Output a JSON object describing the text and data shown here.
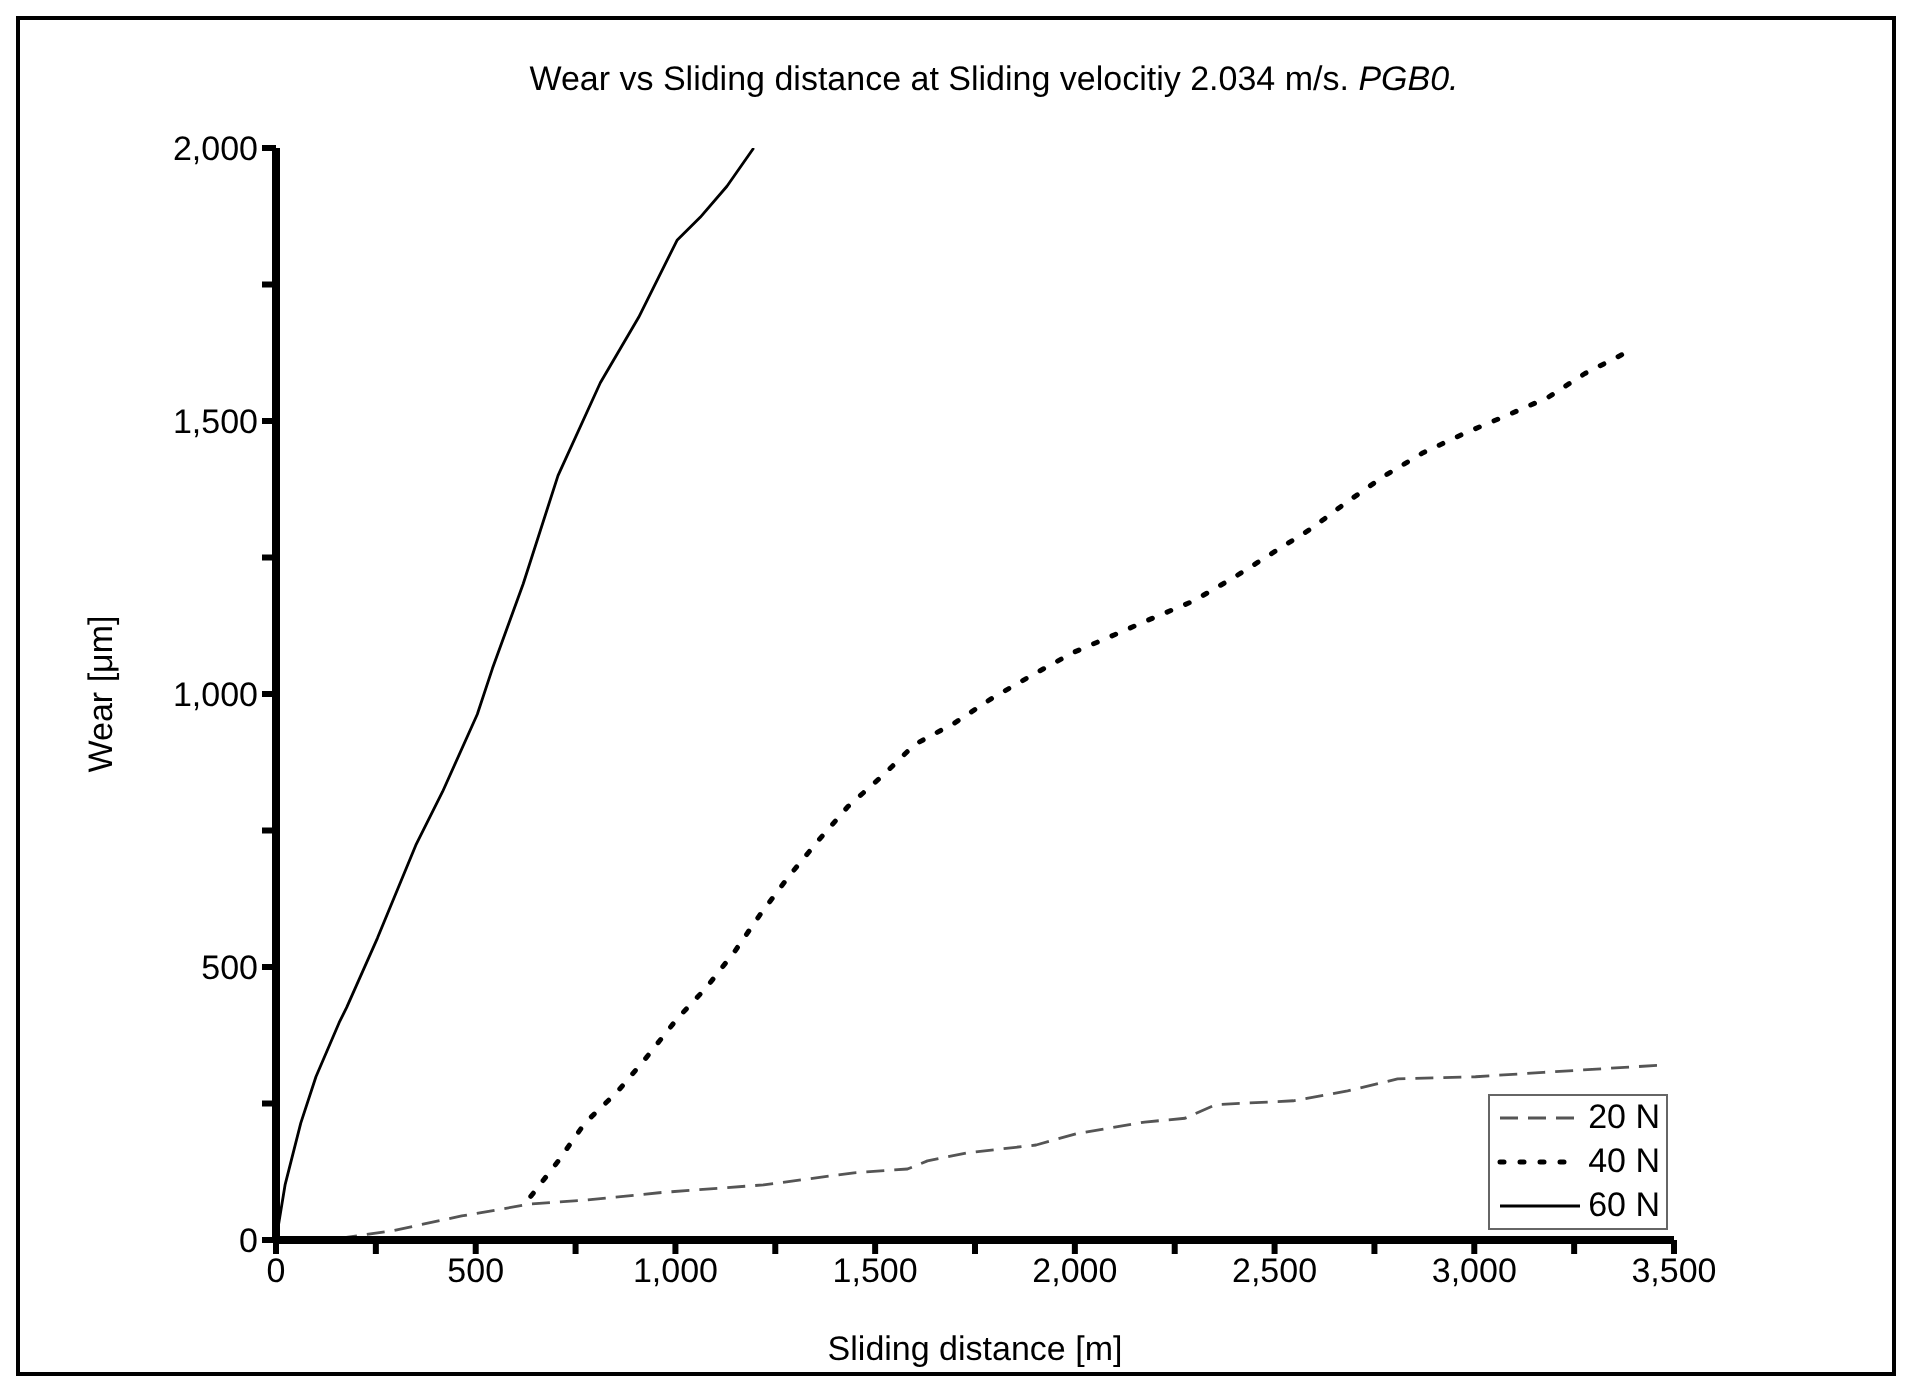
{
  "chart_data": {
    "type": "line",
    "title": "Wear vs Sliding distance at Sliding velocitiy 2.034 m/s. PGB0.",
    "xlabel": "Sliding distance [m]",
    "ylabel": "Wear [μm]",
    "xlim": [
      0,
      3500
    ],
    "ylim": [
      0,
      2000
    ],
    "xticks": [
      0,
      {
        "value": 250,
        "label": null
      },
      500,
      {
        "value": 750,
        "label": null
      },
      {
        "value": 1000,
        "label": "1,000"
      },
      {
        "value": 1250,
        "label": null
      },
      {
        "value": 1500,
        "label": "1,500"
      },
      {
        "value": 1750,
        "label": null
      },
      {
        "value": 2000,
        "label": "2,000"
      },
      {
        "value": 2250,
        "label": null
      },
      {
        "value": 2500,
        "label": "2,500"
      },
      {
        "value": 2750,
        "label": null
      },
      {
        "value": 3000,
        "label": "3,000"
      },
      {
        "value": 3250,
        "label": null
      },
      {
        "value": 3500,
        "label": "3,500"
      }
    ],
    "yticks": [
      0,
      {
        "value": 250,
        "label": null
      },
      500,
      {
        "value": 750,
        "label": null
      },
      {
        "value": 1000,
        "label": "1,000"
      },
      {
        "value": 1250,
        "label": null
      },
      {
        "value": 1500,
        "label": "1,500"
      },
      {
        "value": 1750,
        "label": null
      },
      {
        "value": 2000,
        "label": "2,000"
      }
    ],
    "grid": false,
    "legend": "bottom right",
    "marker": "none",
    "series": [
      {
        "name": "20 N",
        "color": "#555555",
        "line_style": "dashed",
        "x": [
          158,
          292,
          465,
          638,
          773,
          965,
          1221,
          1447,
          1581,
          1631,
          1733,
          1903,
          2005,
          2175,
          2276,
          2353,
          2547,
          2683,
          2808,
          3003,
          3173,
          3462
        ],
        "values": [
          3,
          17,
          44,
          66,
          73,
          87,
          101,
          123,
          130,
          145,
          160,
          174,
          195,
          216,
          223,
          248,
          255,
          273,
          295,
          299,
          307,
          320
        ]
      },
      {
        "name": "40 N",
        "color": "#000000",
        "line_style": "dotted",
        "x": [
          638,
          706,
          773,
          854,
          927,
          1004,
          1077,
          1148,
          1212,
          1285,
          1356,
          1432,
          1518,
          1598,
          1699,
          1792,
          1894,
          1996,
          2101,
          2192,
          2296,
          2395,
          2492,
          2590,
          2682,
          2776,
          2872,
          2977,
          3084,
          3184,
          3277,
          3382
        ],
        "values": [
          80,
          144,
          214,
          271,
          334,
          405,
          462,
          528,
          596,
          667,
          730,
          794,
          850,
          907,
          947,
          992,
          1035,
          1076,
          1109,
          1138,
          1170,
          1212,
          1257,
          1302,
          1352,
          1400,
          1442,
          1478,
          1511,
          1543,
          1587,
          1626
        ]
      },
      {
        "name": "60 N",
        "color": "#000000",
        "line_style": "solid",
        "x": [
          0,
          23,
          62,
          100,
          158,
          177,
          254,
          350,
          417,
          504,
          542,
          619,
          706,
          812,
          908,
          1004,
          1062,
          1129,
          1196
        ],
        "values": [
          0,
          102,
          214,
          299,
          398,
          426,
          553,
          723,
          821,
          963,
          1047,
          1202,
          1400,
          1570,
          1690,
          1831,
          1873,
          1930,
          2000
        ]
      }
    ]
  }
}
